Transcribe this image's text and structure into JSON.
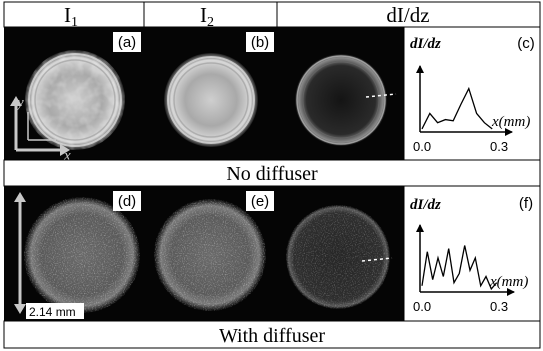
{
  "headers": [
    "I",
    "I",
    "dI/dz"
  ],
  "header_subscripts": [
    "1",
    "2"
  ],
  "captions": {
    "row1": "No diffuser",
    "row2": "With diffuser"
  },
  "panel_labels": [
    "(a)",
    "(b)",
    "(c)",
    "(d)",
    "(e)",
    "(f)"
  ],
  "axes_arrows": {
    "y": "y",
    "x": "x"
  },
  "scale_bar": "2.14 mm",
  "colors": {
    "frame": "#000000",
    "image_bg": "#050505",
    "beam": "#e8e8e8",
    "label_box": "#ffffff",
    "axis_overlay": "#c8c8c8"
  },
  "chart_data": [
    {
      "type": "line",
      "panel": "(c)",
      "ylabel": "dI/dz",
      "xlabel": "x(mm)",
      "x_ticks": [
        "0.0",
        "0.3"
      ],
      "xlim": [
        0.0,
        0.3
      ],
      "ylim": [
        0,
        1
      ],
      "x": [
        0.0,
        0.03,
        0.06,
        0.09,
        0.12,
        0.15,
        0.18,
        0.21,
        0.24,
        0.27
      ],
      "y": [
        0.05,
        0.3,
        0.15,
        0.2,
        0.18,
        0.45,
        0.7,
        0.3,
        0.15,
        0.05
      ]
    },
    {
      "type": "line",
      "panel": "(f)",
      "ylabel": "dI/dz",
      "xlabel": "x(mm)",
      "x_ticks": [
        "0.0",
        "0.3"
      ],
      "xlim": [
        0.0,
        0.3
      ],
      "ylim": [
        0,
        1
      ],
      "x": [
        0.0,
        0.02,
        0.04,
        0.06,
        0.08,
        0.1,
        0.12,
        0.14,
        0.16,
        0.18,
        0.2,
        0.22,
        0.24,
        0.26,
        0.28
      ],
      "y": [
        0.1,
        0.65,
        0.2,
        0.55,
        0.25,
        0.7,
        0.15,
        0.3,
        0.75,
        0.35,
        0.55,
        0.1,
        0.25,
        0.05,
        0.15
      ]
    }
  ]
}
